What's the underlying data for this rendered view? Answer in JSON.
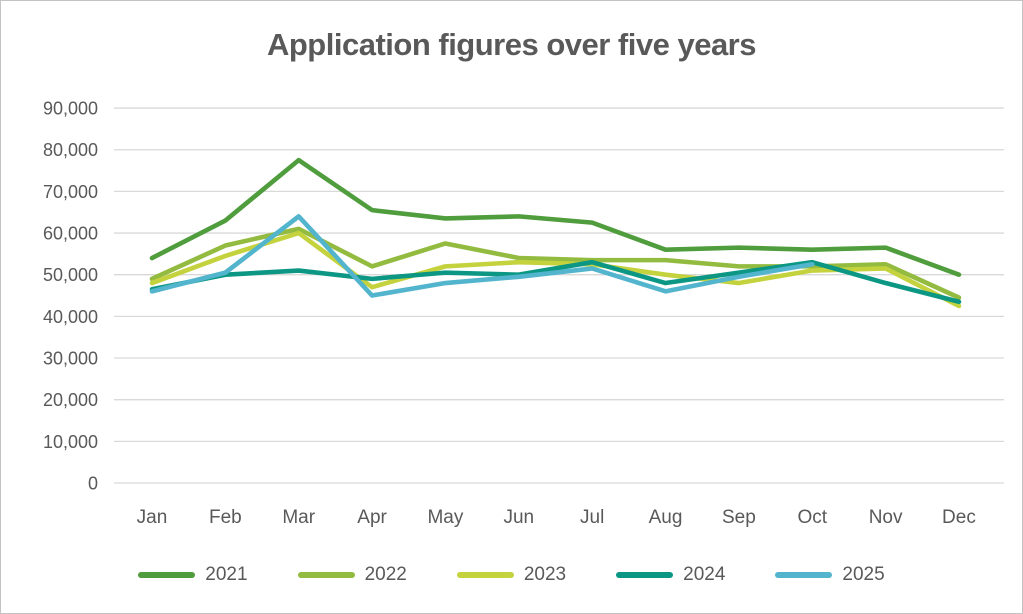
{
  "chart_data": {
    "type": "line",
    "title": "Application figures over five years",
    "categories": [
      "Jan",
      "Feb",
      "Mar",
      "Apr",
      "May",
      "Jun",
      "Jul",
      "Aug",
      "Sep",
      "Oct",
      "Nov",
      "Dec"
    ],
    "ylim": [
      0,
      90000
    ],
    "ytick_step": 10000,
    "ytick_labels": [
      "0",
      "10,000",
      "20,000",
      "30,000",
      "40,000",
      "50,000",
      "60,000",
      "70,000",
      "80,000",
      "90,000"
    ],
    "grid": "horizontal",
    "legend_position": "bottom",
    "series": [
      {
        "name": "2021",
        "color": "#4f9d3c",
        "values": [
          54000,
          63000,
          77500,
          65500,
          63500,
          64000,
          62500,
          56000,
          56500,
          56000,
          56500,
          50000
        ]
      },
      {
        "name": "2022",
        "color": "#93bb40",
        "values": [
          49000,
          57000,
          61000,
          52000,
          57500,
          54000,
          53500,
          53500,
          52000,
          52000,
          52500,
          44500
        ]
      },
      {
        "name": "2023",
        "color": "#c4d23e",
        "values": [
          48000,
          54500,
          60000,
          47000,
          52000,
          53000,
          52500,
          50000,
          48000,
          51000,
          51500,
          42500
        ]
      },
      {
        "name": "2024",
        "color": "#0c9784",
        "values": [
          46500,
          50000,
          51000,
          49000,
          50500,
          50000,
          53000,
          48000,
          50500,
          53000,
          48000,
          43500
        ]
      },
      {
        "name": "2025",
        "color": "#52b5cd",
        "values": [
          46000,
          50500,
          64000,
          45000,
          48000,
          49500,
          51500,
          46000,
          49500,
          52500,
          null,
          null
        ]
      }
    ]
  }
}
